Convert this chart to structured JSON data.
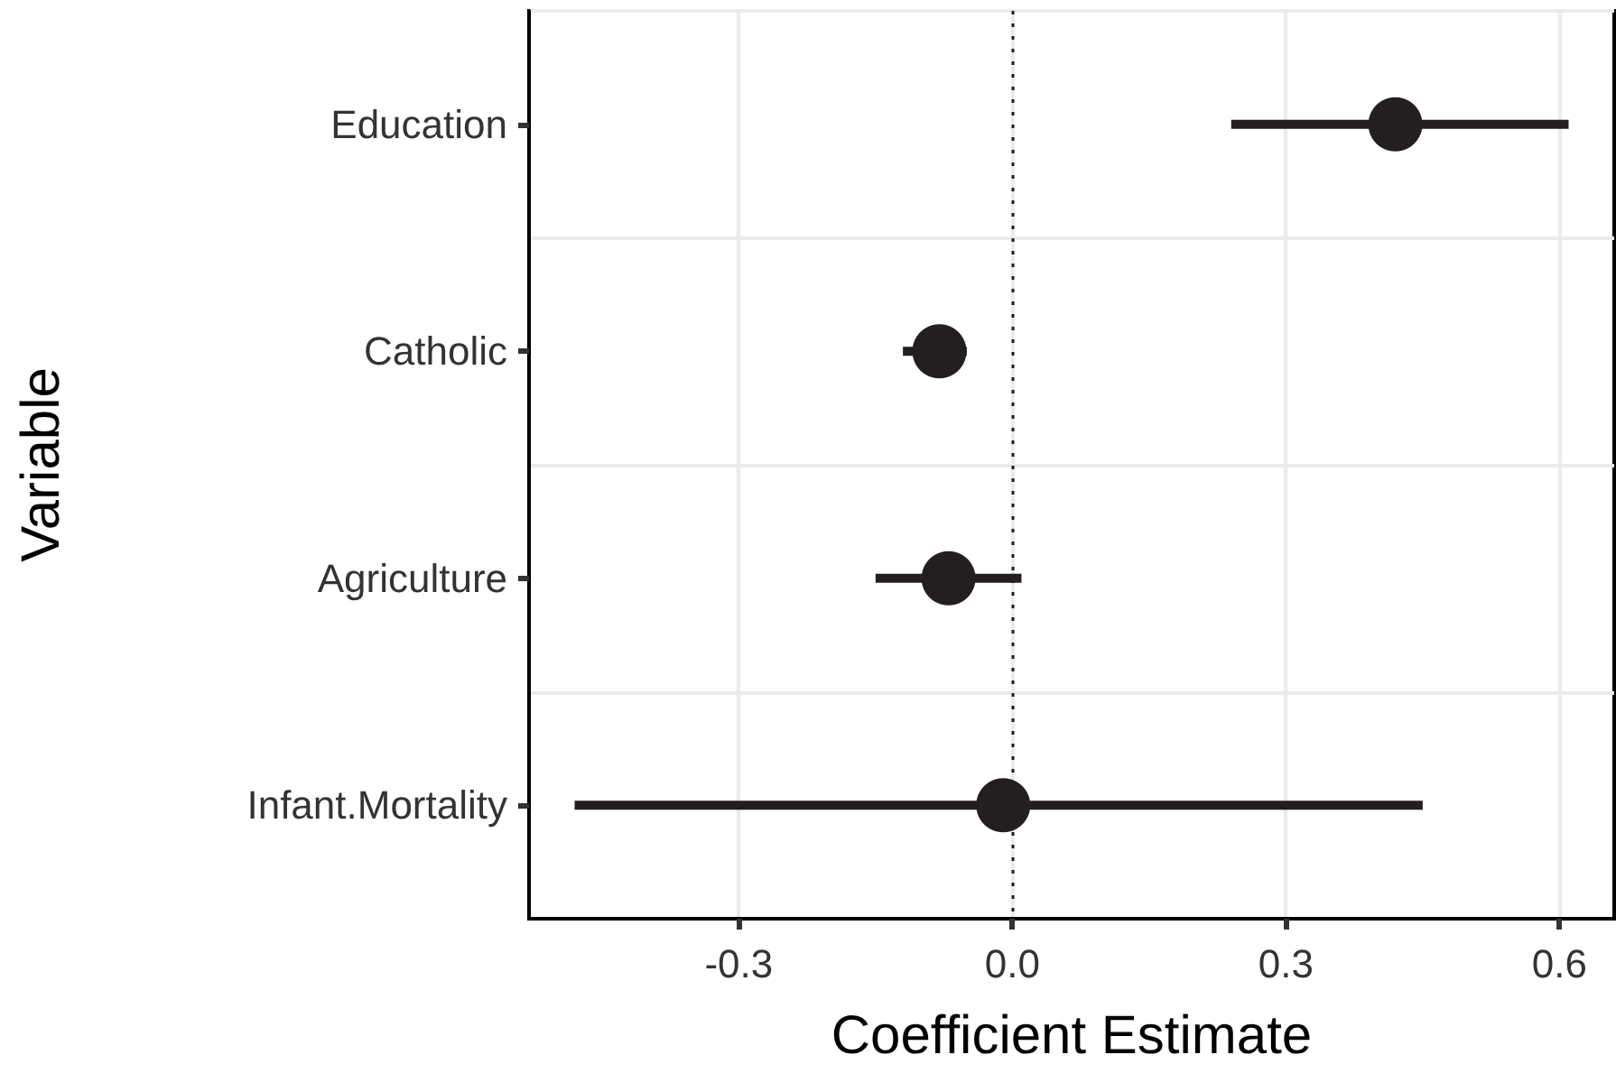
{
  "chart_data": {
    "type": "scatter",
    "orientation": "horizontal",
    "xlabel": "Coefficient Estimate",
    "ylabel": "Variable",
    "categories": [
      "Education",
      "Catholic",
      "Agriculture",
      "Infant.Mortality"
    ],
    "values": [
      0.42,
      -0.08,
      -0.07,
      -0.01
    ],
    "errors": [
      [
        0.24,
        0.61
      ],
      [
        -0.12,
        -0.05
      ],
      [
        -0.15,
        0.01
      ],
      [
        -0.48,
        0.45
      ]
    ],
    "color": "#231f20",
    "marker": "circle",
    "xlim": [
      -0.53,
      0.66
    ],
    "xticks": [
      {
        "value": -0.3,
        "label": "-0.3"
      },
      {
        "value": 0,
        "label": "0.0"
      },
      {
        "value": 0.3,
        "label": "0.3"
      },
      {
        "value": 0.6,
        "label": "0.6"
      }
    ],
    "ref_lines": [
      {
        "axis": "x",
        "value": 0,
        "line_style": "dotted",
        "color": "#231f20"
      }
    ],
    "grid": true
  }
}
